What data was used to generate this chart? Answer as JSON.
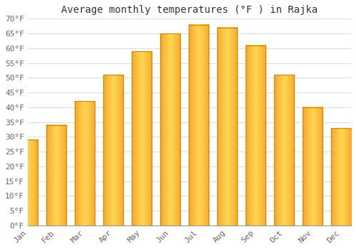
{
  "title": "Average monthly temperatures (°F ) in Rajka",
  "months": [
    "Jan",
    "Feb",
    "Mar",
    "Apr",
    "May",
    "Jun",
    "Jul",
    "Aug",
    "Sep",
    "Oct",
    "Nov",
    "Dec"
  ],
  "values": [
    29,
    34,
    42,
    51,
    59,
    65,
    68,
    67,
    61,
    51,
    40,
    33
  ],
  "bar_color_center": "#FFD050",
  "bar_color_edge": "#F5A623",
  "bar_edgecolor": "#CC8800",
  "ylim": [
    0,
    70
  ],
  "ytick_step": 5,
  "background_color": "#ffffff",
  "plot_bg_color": "#ffffff",
  "grid_color": "#dddddd",
  "title_fontsize": 10,
  "tick_fontsize": 8,
  "font_family": "monospace"
}
